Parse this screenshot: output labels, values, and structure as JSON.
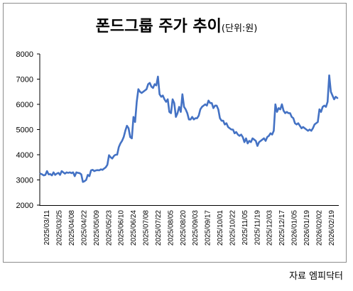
{
  "chart_data": {
    "type": "line",
    "title": "폰드그룹 주가 추이",
    "unit_label": "(단위:원)",
    "source": "자료 엠피닥터",
    "ylim": [
      2000,
      8000
    ],
    "yticks": [
      2000,
      3000,
      4000,
      5000,
      6000,
      7000,
      8000
    ],
    "grid": false,
    "legend": "none",
    "line_color": "#4472C4",
    "xticks": [
      "2025/03/11",
      "2025/03/25",
      "2025/04/08",
      "2025/04/22",
      "2025/05/09",
      "2025/05/23",
      "2025/06/10",
      "2025/06/24",
      "2025/07/08",
      "2025/07/22",
      "2025/08/05",
      "2025/08/20",
      "2025/09/03",
      "2025/09/17",
      "2025/10/01",
      "2025/10/22",
      "2025/11/05",
      "2025/11/19",
      "2025/12/03",
      "2025/12/17",
      "2026/01/05",
      "2026/01/19",
      "2026/02/02",
      "2026/02/19"
    ],
    "series": [
      {
        "values": [
          3250,
          3220,
          3180,
          3200,
          3350,
          3220,
          3230,
          3180,
          3300,
          3200,
          3250,
          3280,
          3200,
          3350,
          3300,
          3250,
          3300,
          3280,
          3300,
          3270,
          3300,
          3150,
          3300,
          3280,
          3270,
          3220,
          2920,
          2950,
          3000,
          3200,
          3150,
          3380,
          3400,
          3350,
          3380,
          3390,
          3380,
          3420,
          3400,
          3450,
          3500,
          3600,
          3980,
          3900,
          3850,
          3950,
          4000,
          4000,
          4300,
          4450,
          4550,
          4700,
          4950,
          5150,
          5050,
          4700,
          4650,
          5500,
          5300,
          6100,
          6600,
          6500,
          6450,
          6500,
          6550,
          6600,
          6800,
          6850,
          6700,
          6650,
          6800,
          6750,
          7100,
          6400,
          6300,
          6350,
          6200,
          6100,
          6200,
          5700,
          5650,
          6200,
          6050,
          5500,
          5650,
          5900,
          5700,
          6400,
          5900,
          5800,
          5650,
          5400,
          5400,
          5500,
          5400,
          5450,
          5450,
          5550,
          5800,
          5900,
          5950,
          6000,
          5950,
          6150,
          6050,
          6050,
          5850,
          5950,
          5950,
          5800,
          5450,
          5350,
          5350,
          5200,
          5250,
          5100,
          5050,
          5000,
          5000,
          4850,
          4900,
          4800,
          4750,
          4800,
          4700,
          4500,
          4650,
          4450,
          4550,
          4500,
          4650,
          4600,
          4550,
          4350,
          4500,
          4550,
          4600,
          4650,
          4550,
          4700,
          4750,
          4850,
          4800,
          4950,
          6000,
          5700,
          5850,
          5800,
          6000,
          5750,
          5650,
          5700,
          5650,
          5650,
          5500,
          5450,
          5250,
          5200,
          5250,
          5150,
          5050,
          5100,
          5050,
          5000,
          4950,
          5000,
          4950,
          5050,
          5200,
          5250,
          5300,
          5800,
          5700,
          5900,
          5950,
          5900,
          6100,
          7150,
          6500,
          6350,
          6200,
          6300,
          6250
        ]
      }
    ]
  }
}
